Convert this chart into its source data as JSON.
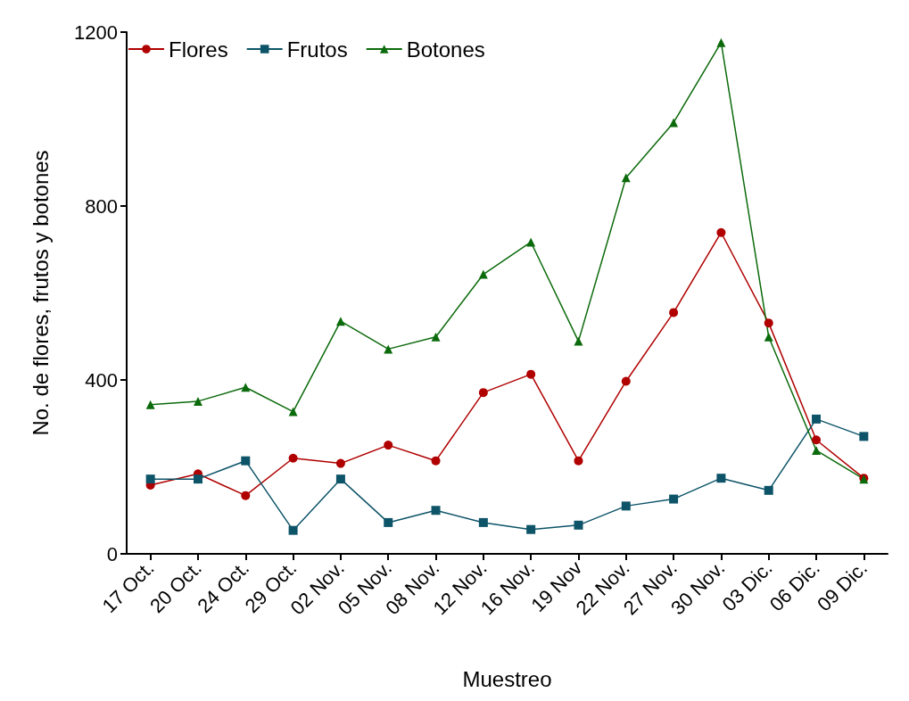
{
  "chart_data": {
    "type": "line",
    "xlabel": "Muestreo",
    "ylabel": "No. de flores, frutos y botones",
    "categories": [
      "17 Oct.",
      "20 Oct.",
      "24 Oct.",
      "29 Oct.",
      "02 Nov.",
      "05 Nov.",
      "08 Nov.",
      "12 Nov.",
      "16 Nov.",
      "19 Nov",
      "22 Nov.",
      "27 Nov.",
      "30 Nov.",
      "03 Dic.",
      "06 Dic.",
      "09 Dic."
    ],
    "series": [
      {
        "name": "Flores",
        "color": "#b00000",
        "marker": "circle",
        "values": [
          158,
          184,
          134,
          220,
          208,
          250,
          214,
          371,
          413,
          214,
          397,
          555,
          739,
          531,
          262,
          174
        ]
      },
      {
        "name": "Frutos",
        "color": "#0d5468",
        "marker": "square",
        "values": [
          172,
          172,
          214,
          54,
          172,
          72,
          100,
          72,
          56,
          66,
          110,
          126,
          174,
          146,
          310,
          270
        ]
      },
      {
        "name": "Botones",
        "color": "#0b6a0b",
        "marker": "triangle",
        "values": [
          343,
          351,
          383,
          327,
          535,
          471,
          499,
          643,
          717,
          489,
          865,
          992,
          1176,
          499,
          238,
          172
        ]
      }
    ],
    "ylim": [
      0,
      1200
    ],
    "yticks": [
      0,
      400,
      800,
      1200
    ],
    "grid": false,
    "legend": "top left",
    "line_style": "solid"
  }
}
